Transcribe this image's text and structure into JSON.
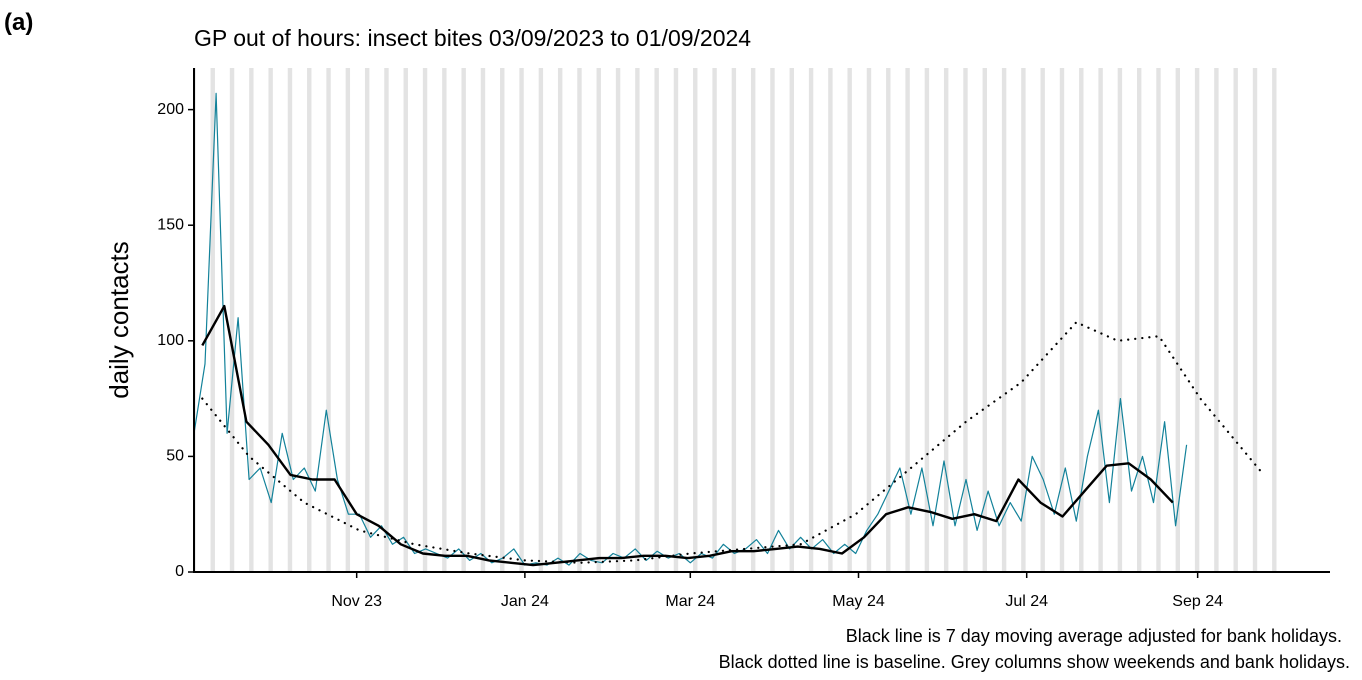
{
  "panel_label": "(a)",
  "chart_data": {
    "type": "line",
    "title": "GP out of hours: insect bites 03/09/2023 to 01/09/2024",
    "y_label": "daily contacts",
    "notes": [
      "Black line is 7 day moving average adjusted for bank holidays.",
      "Black dotted line is baseline. Grey columns show weekends and bank holidays."
    ],
    "xlim": [
      0,
      412
    ],
    "xticks": [
      {
        "value": 59,
        "label": "Nov 23"
      },
      {
        "value": 120,
        "label": "Jan 24"
      },
      {
        "value": 180,
        "label": "Mar 24"
      },
      {
        "value": 241,
        "label": "May 24"
      },
      {
        "value": 302,
        "label": "Jul 24"
      },
      {
        "value": 364,
        "label": "Sep 24"
      }
    ],
    "ylim": [
      0,
      218
    ],
    "yticks": [
      0,
      50,
      100,
      150,
      200
    ],
    "series": [
      {
        "color": "#13829a",
        "style": "solid",
        "width": 1.2,
        "x": [
          0,
          4,
          8,
          12,
          16,
          20,
          24,
          28,
          32,
          36,
          40,
          44,
          48,
          52,
          56,
          60,
          64,
          68,
          72,
          76,
          80,
          84,
          88,
          92,
          96,
          100,
          104,
          108,
          112,
          116,
          120,
          124,
          128,
          132,
          136,
          140,
          144,
          148,
          152,
          156,
          160,
          164,
          168,
          172,
          176,
          180,
          184,
          188,
          192,
          196,
          200,
          204,
          208,
          212,
          216,
          220,
          224,
          228,
          232,
          236,
          240,
          244,
          248,
          252,
          256,
          260,
          264,
          268,
          272,
          276,
          280,
          284,
          288,
          292,
          296,
          300,
          304,
          308,
          312,
          316,
          320,
          324,
          328,
          332,
          336,
          340,
          344,
          348,
          352,
          356,
          360
        ],
        "values": [
          60,
          90,
          207,
          60,
          110,
          40,
          45,
          30,
          60,
          40,
          45,
          35,
          70,
          40,
          25,
          25,
          15,
          20,
          12,
          15,
          8,
          10,
          8,
          6,
          10,
          5,
          8,
          4,
          6,
          10,
          3,
          4,
          3,
          6,
          3,
          8,
          5,
          4,
          8,
          6,
          10,
          5,
          9,
          6,
          8,
          4,
          8,
          6,
          12,
          8,
          10,
          14,
          8,
          18,
          10,
          15,
          10,
          14,
          8,
          12,
          8,
          18,
          25,
          35,
          45,
          25,
          45,
          20,
          48,
          20,
          40,
          18,
          35,
          20,
          30,
          22,
          50,
          40,
          25,
          45,
          22,
          50,
          70,
          30,
          75,
          35,
          50,
          30,
          65,
          20,
          55
        ]
      },
      {
        "color": "#000000",
        "style": "solid",
        "width": 2.4,
        "x": [
          3,
          11,
          19,
          27,
          35,
          43,
          51,
          59,
          67,
          75,
          83,
          91,
          99,
          107,
          115,
          123,
          131,
          139,
          147,
          155,
          163,
          171,
          179,
          187,
          195,
          203,
          211,
          219,
          227,
          235,
          243,
          251,
          259,
          267,
          275,
          283,
          291,
          299,
          307,
          315,
          323,
          331,
          339,
          347,
          355
        ],
        "values": [
          98,
          115,
          65,
          55,
          42,
          40,
          40,
          25,
          20,
          12,
          8,
          7,
          7,
          5,
          4,
          3,
          4,
          5,
          6,
          6,
          7,
          7,
          6,
          7,
          9,
          9,
          10,
          11,
          10,
          8,
          15,
          25,
          28,
          26,
          23,
          25,
          22,
          40,
          30,
          24,
          35,
          46,
          47,
          40,
          30
        ]
      },
      {
        "color": "#000000",
        "style": "dotted",
        "width": 2.2,
        "x": [
          3,
          20,
          40,
          60,
          80,
          100,
          120,
          140,
          160,
          180,
          200,
          220,
          240,
          260,
          280,
          300,
          320,
          335,
          350,
          365,
          388
        ],
        "values": [
          75,
          50,
          30,
          18,
          12,
          8,
          5,
          4,
          5,
          8,
          10,
          12,
          25,
          45,
          65,
          82,
          108,
          100,
          102,
          75,
          42
        ]
      }
    ]
  }
}
